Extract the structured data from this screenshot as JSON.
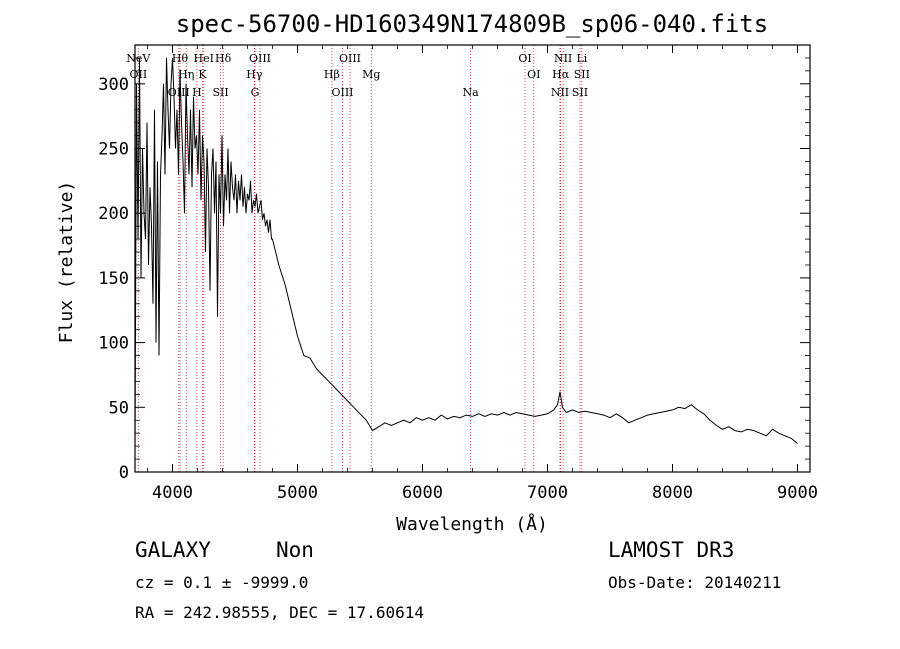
{
  "chart_data": {
    "type": "line",
    "title": "spec-56700-HD160349N174809B_sp06-040.fits",
    "xlabel": "Wavelength (Å)",
    "ylabel": "Flux (relative)",
    "xlim": [
      3700,
      9100
    ],
    "ylim": [
      0,
      330
    ],
    "xticks": [
      4000,
      5000,
      6000,
      7000,
      8000,
      9000
    ],
    "yticks": [
      0,
      50,
      100,
      150,
      200,
      250,
      300
    ],
    "series": [
      {
        "name": "flux",
        "x": [
          3700,
          3712,
          3724,
          3736,
          3748,
          3760,
          3772,
          3784,
          3796,
          3808,
          3820,
          3832,
          3844,
          3856,
          3868,
          3880,
          3892,
          3904,
          3916,
          3928,
          3940,
          3952,
          3964,
          3976,
          3988,
          4000,
          4012,
          4024,
          4036,
          4048,
          4060,
          4072,
          4084,
          4096,
          4108,
          4120,
          4132,
          4144,
          4156,
          4168,
          4180,
          4192,
          4204,
          4216,
          4228,
          4240,
          4252,
          4264,
          4276,
          4288,
          4300,
          4312,
          4324,
          4336,
          4348,
          4360,
          4372,
          4384,
          4396,
          4408,
          4420,
          4432,
          4444,
          4456,
          4468,
          4480,
          4492,
          4504,
          4516,
          4528,
          4540,
          4552,
          4564,
          4576,
          4588,
          4600,
          4612,
          4624,
          4636,
          4648,
          4660,
          4672,
          4684,
          4696,
          4708,
          4720,
          4732,
          4744,
          4756,
          4768,
          4780,
          4792,
          4800,
          4850,
          4900,
          4950,
          5000,
          5050,
          5100,
          5150,
          5200,
          5250,
          5300,
          5350,
          5400,
          5450,
          5500,
          5550,
          5600,
          5650,
          5700,
          5750,
          5800,
          5850,
          5900,
          5950,
          6000,
          6050,
          6100,
          6150,
          6200,
          6250,
          6300,
          6350,
          6400,
          6450,
          6500,
          6550,
          6600,
          6650,
          6700,
          6750,
          6800,
          6850,
          6900,
          6950,
          7000,
          7050,
          7080,
          7100,
          7120,
          7150,
          7200,
          7250,
          7300,
          7350,
          7400,
          7450,
          7500,
          7550,
          7600,
          7650,
          7700,
          7750,
          7800,
          7850,
          7900,
          7950,
          8000,
          8050,
          8100,
          8150,
          8200,
          8250,
          8300,
          8350,
          8400,
          8450,
          8500,
          8550,
          8600,
          8650,
          8700,
          8750,
          8800,
          8850,
          8900,
          8950,
          9000
        ],
        "y": [
          20,
          300,
          180,
          320,
          150,
          250,
          200,
          180,
          270,
          160,
          220,
          190,
          130,
          280,
          100,
          240,
          90,
          230,
          260,
          300,
          230,
          320,
          280,
          250,
          300,
          320,
          290,
          250,
          280,
          230,
          310,
          270,
          240,
          200,
          300,
          260,
          230,
          280,
          220,
          290,
          250,
          260,
          230,
          280,
          210,
          260,
          240,
          170,
          250,
          220,
          140,
          230,
          250,
          200,
          240,
          120,
          230,
          200,
          260,
          190,
          230,
          210,
          250,
          200,
          240,
          220,
          210,
          230,
          200,
          225,
          210,
          230,
          205,
          220,
          200,
          215,
          210,
          225,
          200,
          210,
          205,
          215,
          200,
          205,
          210,
          195,
          200,
          190,
          195,
          185,
          195,
          180,
          180,
          160,
          145,
          125,
          105,
          90,
          88,
          80,
          75,
          70,
          65,
          60,
          55,
          50,
          45,
          40,
          32,
          35,
          38,
          36,
          38,
          40,
          38,
          42,
          40,
          42,
          40,
          44,
          41,
          43,
          42,
          44,
          43,
          45,
          43,
          45,
          44,
          46,
          44,
          46,
          45,
          44,
          43,
          44,
          45,
          48,
          52,
          62,
          50,
          46,
          48,
          46,
          47,
          46,
          45,
          44,
          42,
          45,
          42,
          38,
          40,
          42,
          44,
          45,
          46,
          47,
          48,
          50,
          49,
          52,
          48,
          45,
          40,
          36,
          33,
          35,
          32,
          31,
          33,
          32,
          30,
          28,
          33,
          30,
          28,
          26,
          22
        ],
        "color": "#000000"
      }
    ],
    "line_markers": {
      "color": "#cc2222",
      "labels": [
        {
          "name": "NeV",
          "wavelength": 3726
        },
        {
          "name": "OII",
          "wavelength": 3727
        },
        {
          "name": "OIII",
          "wavelength": 4050
        },
        {
          "name": "Hθ",
          "wavelength": 4060
        },
        {
          "name": "Hη",
          "wavelength": 4110
        },
        {
          "name": "H",
          "wavelength": 4195
        },
        {
          "name": "HeI",
          "wavelength": 4250
        },
        {
          "name": "K",
          "wavelength": 4240
        },
        {
          "name": "SII",
          "wavelength": 4385
        },
        {
          "name": "Hδ",
          "wavelength": 4405
        },
        {
          "name": "Hγ",
          "wavelength": 4655
        },
        {
          "name": "G",
          "wavelength": 4660
        },
        {
          "name": "OIII",
          "wavelength": 4700
        },
        {
          "name": "Hβ",
          "wavelength": 5275
        },
        {
          "name": "OIII",
          "wavelength": 5360
        },
        {
          "name": "OIII",
          "wavelength": 5420
        },
        {
          "name": "Mg",
          "wavelength": 5590
        },
        {
          "name": "Na",
          "wavelength": 6385
        },
        {
          "name": "OI",
          "wavelength": 6820
        },
        {
          "name": "OI",
          "wavelength": 6890
        },
        {
          "name": "NII",
          "wavelength": 7100
        },
        {
          "name": "NII",
          "wavelength": 7125
        },
        {
          "name": "Hα",
          "wavelength": 7105
        },
        {
          "name": "SII",
          "wavelength": 7260
        },
        {
          "name": "Li",
          "wavelength": 7275
        },
        {
          "name": "SII",
          "wavelength": 7275
        }
      ]
    }
  },
  "info": {
    "object_class": "GALAXY",
    "object_subclass": "Non",
    "survey": "LAMOST DR3",
    "redshift_line": "cz = 0.1 ± -9999.0",
    "obs_date": "Obs-Date: 20140211",
    "coords": "RA = 242.98555, DEC =  17.60614"
  }
}
